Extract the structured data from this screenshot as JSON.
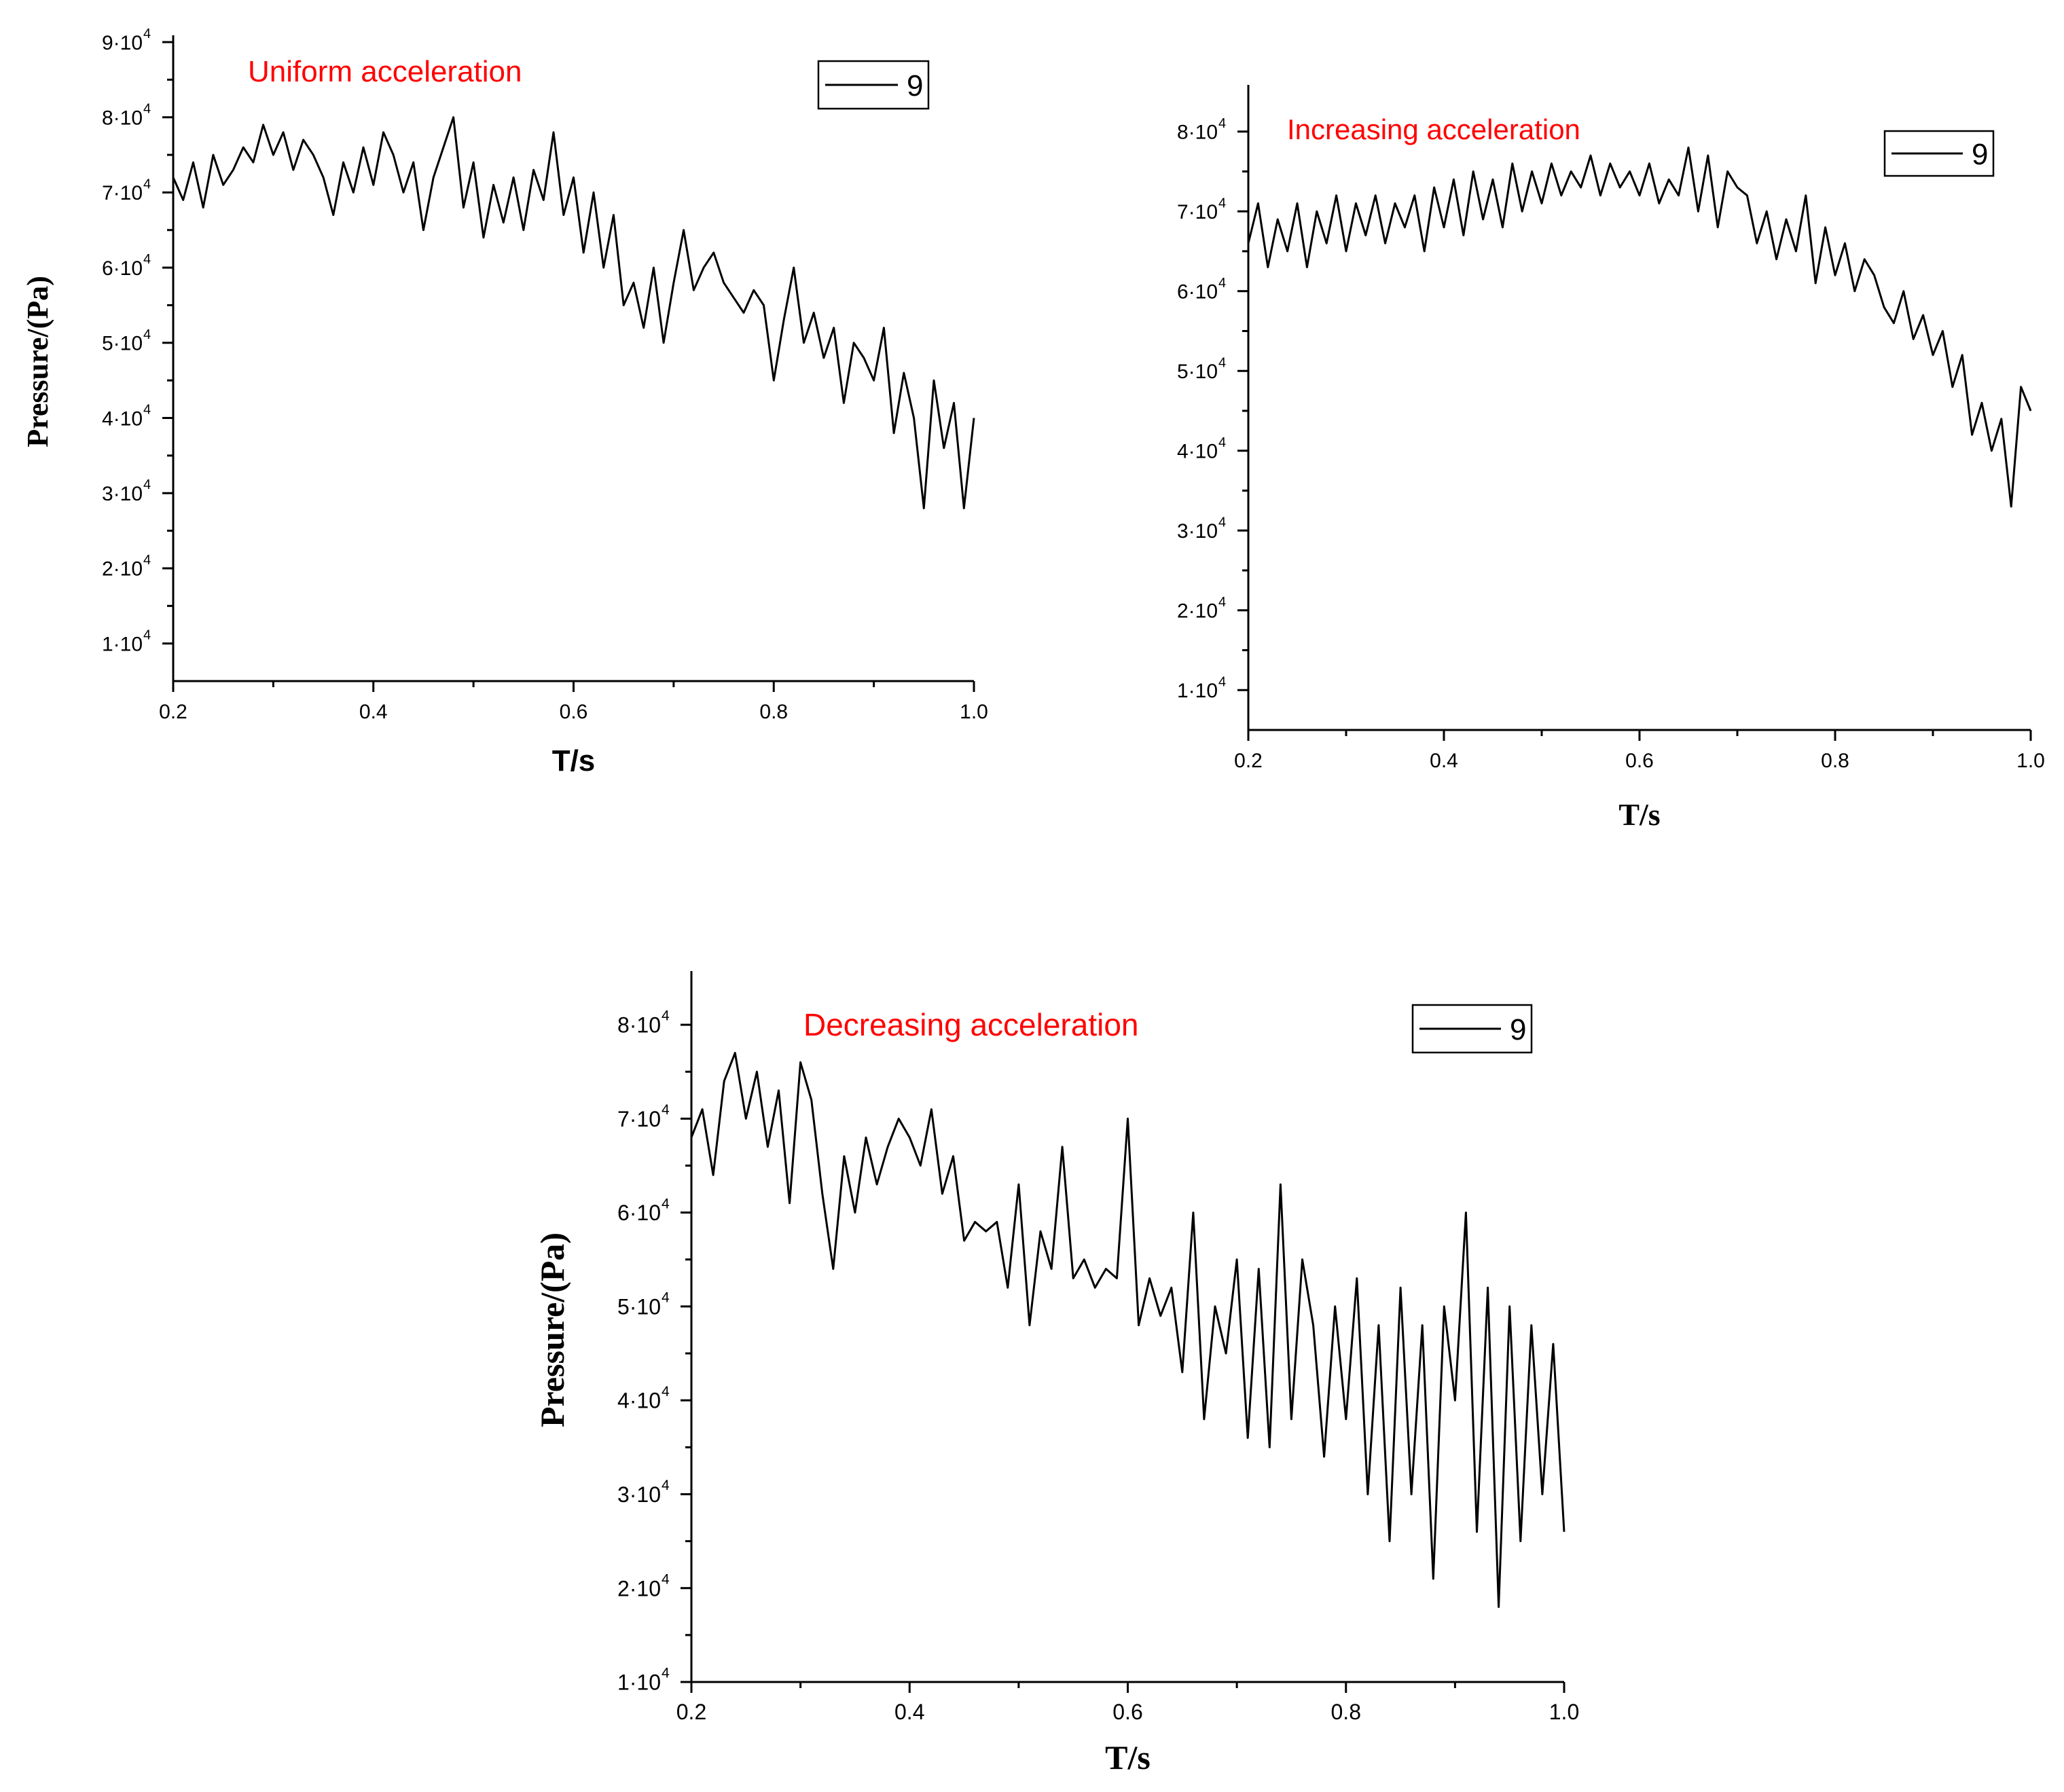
{
  "chart_data": [
    {
      "type": "line",
      "title": "Uniform acceleration",
      "title_color": "#ff0000",
      "xlabel": "T/s",
      "ylabel": "Pressure/(Pa)",
      "xlim": [
        0.2,
        1.0
      ],
      "ylim": [
        5000,
        90000
      ],
      "x_ticks": [
        0.2,
        0.4,
        0.6,
        0.8,
        1.0
      ],
      "x_tick_labels": [
        "0.2",
        "0.4",
        "0.6",
        "0.8",
        "1.0"
      ],
      "y_ticks": [
        10000,
        20000,
        30000,
        40000,
        50000,
        60000,
        70000,
        80000,
        90000
      ],
      "y_tick_labels": [
        "1·10",
        "2·10",
        "3·10",
        "4·10",
        "5·10",
        "6·10",
        "7·10",
        "8·10",
        "9·10"
      ],
      "y_tick_exponent": "4",
      "legend": {
        "position": "top-right"
      },
      "grid": false,
      "series": [
        {
          "name": "9",
          "color": "#000000",
          "x": [
            0.2,
            0.21,
            0.22,
            0.23,
            0.24,
            0.25,
            0.26,
            0.27,
            0.28,
            0.29,
            0.3,
            0.31,
            0.32,
            0.33,
            0.34,
            0.35,
            0.36,
            0.37,
            0.38,
            0.39,
            0.4,
            0.41,
            0.42,
            0.43,
            0.44,
            0.45,
            0.46,
            0.47,
            0.48,
            0.49,
            0.5,
            0.51,
            0.52,
            0.53,
            0.54,
            0.55,
            0.56,
            0.57,
            0.58,
            0.59,
            0.6,
            0.61,
            0.62,
            0.63,
            0.64,
            0.65,
            0.66,
            0.67,
            0.68,
            0.69,
            0.7,
            0.71,
            0.72,
            0.73,
            0.74,
            0.75,
            0.76,
            0.77,
            0.78,
            0.79,
            0.8,
            0.81,
            0.82,
            0.83,
            0.84,
            0.85,
            0.86,
            0.87,
            0.88,
            0.89,
            0.9,
            0.91,
            0.92,
            0.93,
            0.94,
            0.95,
            0.96,
            0.97,
            0.98,
            0.99,
            1.0
          ],
          "y": [
            72000,
            69000,
            74000,
            68000,
            75000,
            71000,
            73000,
            76000,
            74000,
            79000,
            75000,
            78000,
            73000,
            77000,
            75000,
            72000,
            67000,
            74000,
            70000,
            76000,
            71000,
            78000,
            75000,
            70000,
            74000,
            65000,
            72000,
            76000,
            80000,
            68000,
            74000,
            64000,
            71000,
            66000,
            72000,
            65000,
            73000,
            69000,
            78000,
            67000,
            72000,
            62000,
            70000,
            60000,
            67000,
            55000,
            58000,
            52000,
            60000,
            50000,
            58000,
            65000,
            57000,
            60000,
            62000,
            58000,
            56000,
            54000,
            57000,
            55000,
            45000,
            53000,
            60000,
            50000,
            54000,
            48000,
            52000,
            42000,
            50000,
            48000,
            45000,
            52000,
            38000,
            46000,
            40000,
            28000,
            45000,
            36000,
            42000,
            28000,
            40000
          ]
        }
      ]
    },
    {
      "type": "line",
      "title": "Increasing acceleration",
      "title_color": "#ff0000",
      "xlabel": "T/s",
      "ylabel": "",
      "xlim": [
        0.2,
        1.0
      ],
      "ylim": [
        5000,
        85000
      ],
      "x_ticks": [
        0.2,
        0.4,
        0.6,
        0.8,
        1.0
      ],
      "x_tick_labels": [
        "0.2",
        "0.4",
        "0.6",
        "0.8",
        "1.0"
      ],
      "y_ticks": [
        10000,
        20000,
        30000,
        40000,
        50000,
        60000,
        70000,
        80000
      ],
      "y_tick_labels": [
        "1·10",
        "2·10",
        "3·10",
        "4·10",
        "5·10",
        "6·10",
        "7·10",
        "8·10"
      ],
      "y_tick_exponent": "4",
      "legend": {
        "position": "top-right"
      },
      "grid": false,
      "series": [
        {
          "name": "9",
          "color": "#000000",
          "x": [
            0.2,
            0.21,
            0.22,
            0.23,
            0.24,
            0.25,
            0.26,
            0.27,
            0.28,
            0.29,
            0.3,
            0.31,
            0.32,
            0.33,
            0.34,
            0.35,
            0.36,
            0.37,
            0.38,
            0.39,
            0.4,
            0.41,
            0.42,
            0.43,
            0.44,
            0.45,
            0.46,
            0.47,
            0.48,
            0.49,
            0.5,
            0.51,
            0.52,
            0.53,
            0.54,
            0.55,
            0.56,
            0.57,
            0.58,
            0.59,
            0.6,
            0.61,
            0.62,
            0.63,
            0.64,
            0.65,
            0.66,
            0.67,
            0.68,
            0.69,
            0.7,
            0.71,
            0.72,
            0.73,
            0.74,
            0.75,
            0.76,
            0.77,
            0.78,
            0.79,
            0.8,
            0.81,
            0.82,
            0.83,
            0.84,
            0.85,
            0.86,
            0.87,
            0.88,
            0.89,
            0.9,
            0.91,
            0.92,
            0.93,
            0.94,
            0.95,
            0.96,
            0.97,
            0.98,
            0.99,
            1.0
          ],
          "y": [
            66000,
            71000,
            63000,
            69000,
            65000,
            71000,
            63000,
            70000,
            66000,
            72000,
            65000,
            71000,
            67000,
            72000,
            66000,
            71000,
            68000,
            72000,
            65000,
            73000,
            68000,
            74000,
            67000,
            75000,
            69000,
            74000,
            68000,
            76000,
            70000,
            75000,
            71000,
            76000,
            72000,
            75000,
            73000,
            77000,
            72000,
            76000,
            73000,
            75000,
            72000,
            76000,
            71000,
            74000,
            72000,
            78000,
            70000,
            77000,
            68000,
            75000,
            73000,
            72000,
            66000,
            70000,
            64000,
            69000,
            65000,
            72000,
            61000,
            68000,
            62000,
            66000,
            60000,
            64000,
            62000,
            58000,
            56000,
            60000,
            54000,
            57000,
            52000,
            55000,
            48000,
            52000,
            42000,
            46000,
            40000,
            44000,
            33000,
            48000,
            45000
          ]
        }
      ]
    },
    {
      "type": "line",
      "title": "Decreasing acceleration",
      "title_color": "#ff0000",
      "xlabel": "T/s",
      "ylabel": "Pressure/(Pa)",
      "xlim": [
        0.2,
        1.0
      ],
      "ylim": [
        10000,
        85000
      ],
      "x_ticks": [
        0.2,
        0.4,
        0.6,
        0.8,
        1.0
      ],
      "x_tick_labels": [
        "0.2",
        "0.4",
        "0.6",
        "0.8",
        "1.0"
      ],
      "y_ticks": [
        10000,
        20000,
        30000,
        40000,
        50000,
        60000,
        70000,
        80000
      ],
      "y_tick_labels": [
        "1·10",
        "2·10",
        "3·10",
        "4·10",
        "5·10",
        "6·10",
        "7·10",
        "8·10"
      ],
      "y_tick_exponent": "4",
      "legend": {
        "position": "top-right"
      },
      "grid": false,
      "series": [
        {
          "name": "9",
          "color": "#000000",
          "x": [
            0.2,
            0.21,
            0.22,
            0.23,
            0.24,
            0.25,
            0.26,
            0.27,
            0.28,
            0.29,
            0.3,
            0.31,
            0.32,
            0.33,
            0.34,
            0.35,
            0.36,
            0.37,
            0.38,
            0.39,
            0.4,
            0.41,
            0.42,
            0.43,
            0.44,
            0.45,
            0.46,
            0.47,
            0.48,
            0.49,
            0.5,
            0.51,
            0.52,
            0.53,
            0.54,
            0.55,
            0.56,
            0.57,
            0.58,
            0.59,
            0.6,
            0.61,
            0.62,
            0.63,
            0.64,
            0.65,
            0.66,
            0.67,
            0.68,
            0.69,
            0.7,
            0.71,
            0.72,
            0.73,
            0.74,
            0.75,
            0.76,
            0.77,
            0.78,
            0.79,
            0.8,
            0.81,
            0.82,
            0.83,
            0.84,
            0.85,
            0.86,
            0.87,
            0.88,
            0.89,
            0.9,
            0.91,
            0.92,
            0.93,
            0.94,
            0.95,
            0.96,
            0.97,
            0.98,
            0.99,
            1.0
          ],
          "y": [
            68000,
            71000,
            64000,
            74000,
            77000,
            70000,
            75000,
            67000,
            73000,
            61000,
            76000,
            72000,
            62000,
            54000,
            66000,
            60000,
            68000,
            63000,
            67000,
            70000,
            68000,
            65000,
            71000,
            62000,
            66000,
            57000,
            59000,
            58000,
            59000,
            52000,
            63000,
            48000,
            58000,
            54000,
            67000,
            53000,
            55000,
            52000,
            54000,
            53000,
            70000,
            48000,
            53000,
            49000,
            52000,
            43000,
            60000,
            38000,
            50000,
            45000,
            55000,
            36000,
            54000,
            35000,
            63000,
            38000,
            55000,
            48000,
            34000,
            50000,
            38000,
            53000,
            30000,
            48000,
            25000,
            52000,
            30000,
            48000,
            21000,
            50000,
            40000,
            60000,
            26000,
            52000,
            18000,
            50000,
            25000,
            48000,
            30000,
            46000,
            26000
          ]
        }
      ]
    }
  ]
}
